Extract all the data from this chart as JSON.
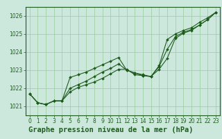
{
  "x": [
    0,
    1,
    2,
    3,
    4,
    5,
    6,
    7,
    8,
    9,
    10,
    11,
    12,
    13,
    14,
    15,
    16,
    17,
    18,
    19,
    20,
    21,
    22,
    23
  ],
  "line1": [
    1021.7,
    1021.2,
    1021.1,
    1021.3,
    1021.3,
    1021.8,
    1022.05,
    1022.2,
    1022.35,
    1022.55,
    1022.8,
    1023.05,
    1023.05,
    1022.75,
    1022.7,
    1022.65,
    1023.05,
    1023.65,
    1024.75,
    1025.05,
    1025.2,
    1025.5,
    1025.8,
    1026.2
  ],
  "line2": [
    1021.7,
    1021.2,
    1021.1,
    1021.3,
    1021.3,
    1022.0,
    1022.2,
    1022.4,
    1022.65,
    1022.9,
    1023.1,
    1023.35,
    1023.0,
    1022.85,
    1022.7,
    1022.65,
    1023.2,
    1024.15,
    1024.85,
    1025.1,
    1025.25,
    1025.5,
    1025.8,
    1026.2
  ],
  "line3": [
    1021.7,
    1021.2,
    1021.1,
    1021.3,
    1021.3,
    1022.6,
    1022.75,
    1022.9,
    1023.1,
    1023.3,
    1023.5,
    1023.7,
    1023.0,
    1022.85,
    1022.75,
    1022.65,
    1023.25,
    1024.7,
    1025.0,
    1025.2,
    1025.35,
    1025.65,
    1025.9,
    1026.2
  ],
  "line_color": "#1e5c1e",
  "bg_color": "#cce8dc",
  "grid_color": "#99cc99",
  "title": "Graphe pression niveau de la mer (hPa)",
  "ylim": [
    1020.5,
    1026.5
  ],
  "yticks": [
    1021,
    1022,
    1023,
    1024,
    1025,
    1026
  ],
  "xticks": [
    0,
    1,
    2,
    3,
    4,
    5,
    6,
    7,
    8,
    9,
    10,
    11,
    12,
    13,
    14,
    15,
    16,
    17,
    18,
    19,
    20,
    21,
    22,
    23
  ],
  "marker": "D",
  "markersize": 2.0,
  "linewidth": 0.8,
  "title_fontsize": 7.5,
  "tick_fontsize": 5.5,
  "spine_color": "#1e5c1e"
}
